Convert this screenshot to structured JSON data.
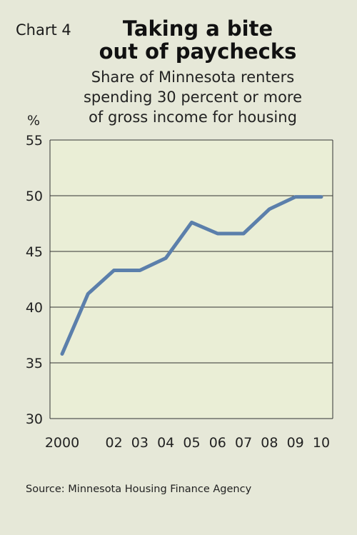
{
  "chart_label": "Chart 4",
  "title_lines": [
    "Taking a bite",
    "out of paychecks"
  ],
  "subtitle_lines": [
    "Share of Minnesota renters",
    "spending 30 percent or more",
    "of gross income for housing"
  ],
  "unit": "%",
  "source": "Source: Minnesota Housing Finance Agency",
  "colors": {
    "panel": "#e6e8d8",
    "plot_bg": "#eaeed6",
    "line": "#5b7fab",
    "grid": "#333333"
  },
  "chart_data": {
    "type": "line",
    "x": [
      2000,
      2001,
      2002,
      2003,
      2004,
      2005,
      2006,
      2007,
      2008,
      2009,
      2010
    ],
    "categories": [
      "2000",
      "",
      "02",
      "03",
      "04",
      "05",
      "06",
      "07",
      "08",
      "09",
      "10"
    ],
    "values": [
      35.8,
      41.2,
      43.3,
      43.3,
      44.4,
      47.6,
      46.6,
      46.6,
      48.8,
      49.9,
      49.9
    ],
    "ylim": [
      30,
      55
    ],
    "yticks": [
      30,
      35,
      40,
      45,
      50,
      55
    ],
    "grid": true
  }
}
